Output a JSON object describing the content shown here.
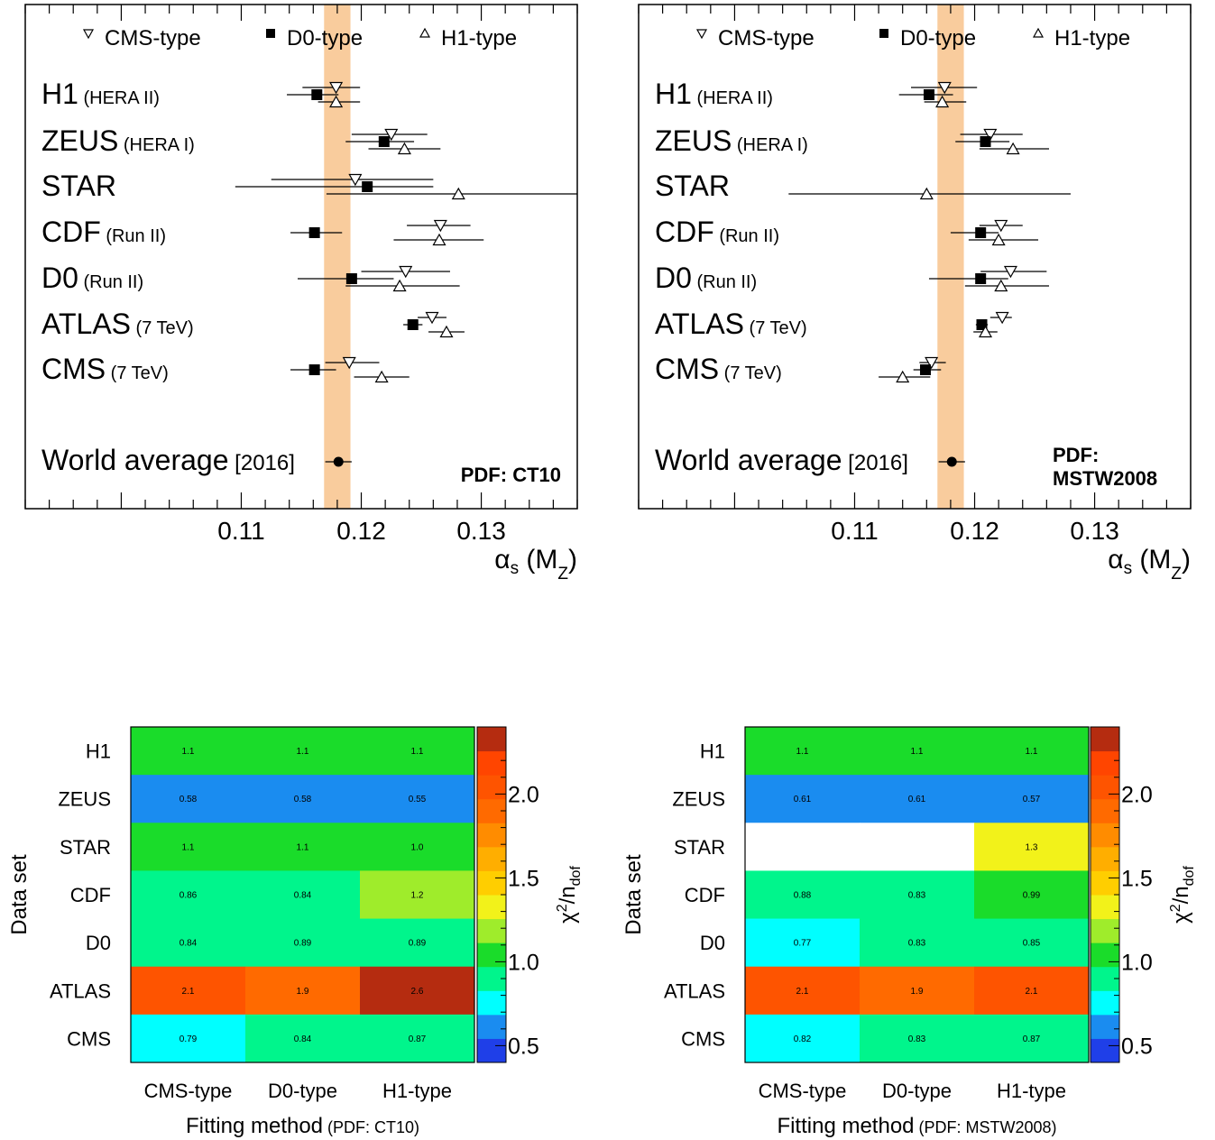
{
  "chart_data": [
    {
      "type": "scatter",
      "title": "",
      "pdf_label": "PDF: CT10",
      "xlabel": "αs (MZ)",
      "x_range": [
        0.092,
        0.138
      ],
      "x_ticks": [
        "0.11",
        "0.12",
        "0.13"
      ],
      "legend": [
        {
          "marker": "triangle-down-open",
          "label": "CMS-type"
        },
        {
          "marker": "square-filled",
          "label": "D0-type"
        },
        {
          "marker": "triangle-up-open",
          "label": "H1-type"
        }
      ],
      "band": {
        "low": 0.1169,
        "high": 0.1191,
        "color": "#f9cc9d"
      },
      "datasets": [
        {
          "name": "H1",
          "sub": "(HERA II)",
          "points": [
            {
              "method": "CMS-type",
              "value": 0.1179,
              "err_low": 0.0028,
              "err_high": 0.002
            },
            {
              "method": "D0-type",
              "value": 0.1163,
              "err_low": 0.0025,
              "err_high": 0.0018
            },
            {
              "method": "H1-type",
              "value": 0.1179,
              "err_low": 0.0015,
              "err_high": 0.002
            }
          ]
        },
        {
          "name": "ZEUS",
          "sub": "(HERA I)",
          "points": [
            {
              "method": "CMS-type",
              "value": 0.1225,
              "err_low": 0.0033,
              "err_high": 0.003
            },
            {
              "method": "D0-type",
              "value": 0.1219,
              "err_low": 0.0032,
              "err_high": 0.0025
            },
            {
              "method": "H1-type",
              "value": 0.1236,
              "err_low": 0.003,
              "err_high": 0.003
            }
          ]
        },
        {
          "name": "STAR",
          "sub": "",
          "points": [
            {
              "method": "CMS-type",
              "value": 0.1195,
              "err_low": 0.007,
              "err_high": 0.0065
            },
            {
              "method": "D0-type",
              "value": 0.1205,
              "err_low": 0.011,
              "err_high": 0.0055
            },
            {
              "method": "H1-type",
              "value": 0.1281,
              "err_low": 0.011,
              "err_high": 0.01
            }
          ]
        },
        {
          "name": "CDF",
          "sub": "(Run II)",
          "points": [
            {
              "method": "CMS-type",
              "value": 0.1266,
              "err_low": 0.0028,
              "err_high": 0.0025
            },
            {
              "method": "D0-type",
              "value": 0.1161,
              "err_low": 0.002,
              "err_high": 0.0023
            },
            {
              "method": "H1-type",
              "value": 0.1265,
              "err_low": 0.0038,
              "err_high": 0.0037
            }
          ]
        },
        {
          "name": "D0",
          "sub": "(Run II)",
          "points": [
            {
              "method": "CMS-type",
              "value": 0.1237,
              "err_low": 0.0037,
              "err_high": 0.0037
            },
            {
              "method": "D0-type",
              "value": 0.1192,
              "err_low": 0.0045,
              "err_high": 0.0035
            },
            {
              "method": "H1-type",
              "value": 0.1232,
              "err_low": 0.0045,
              "err_high": 0.005
            }
          ]
        },
        {
          "name": "ATLAS",
          "sub": "(7 TeV)",
          "points": [
            {
              "method": "CMS-type",
              "value": 0.1259,
              "err_low": 0.0012,
              "err_high": 0.0012
            },
            {
              "method": "D0-type",
              "value": 0.1243,
              "err_low": 0.0008,
              "err_high": 0.0008
            },
            {
              "method": "H1-type",
              "value": 0.1271,
              "err_low": 0.0015,
              "err_high": 0.0015
            }
          ]
        },
        {
          "name": "CMS",
          "sub": "(7 TeV)",
          "points": [
            {
              "method": "CMS-type",
              "value": 0.119,
              "err_low": 0.002,
              "err_high": 0.0025
            },
            {
              "method": "D0-type",
              "value": 0.1161,
              "err_low": 0.002,
              "err_high": 0.0018
            },
            {
              "method": "H1-type",
              "value": 0.1217,
              "err_low": 0.0023,
              "err_high": 0.0023
            }
          ]
        }
      ],
      "world_average": {
        "name": "World average",
        "sub": "[2016]",
        "value": 0.1181,
        "err": 0.0011
      }
    },
    {
      "type": "scatter",
      "title": "",
      "pdf_label": "PDF: MSTW2008",
      "xlabel": "αs (MZ)",
      "x_range": [
        0.092,
        0.138
      ],
      "x_ticks": [
        "0.11",
        "0.12",
        "0.13"
      ],
      "legend": [
        {
          "marker": "triangle-down-open",
          "label": "CMS-type"
        },
        {
          "marker": "square-filled",
          "label": "D0-type"
        },
        {
          "marker": "triangle-up-open",
          "label": "H1-type"
        }
      ],
      "band": {
        "low": 0.1169,
        "high": 0.1191,
        "color": "#f9cc9d"
      },
      "datasets": [
        {
          "name": "H1",
          "sub": "(HERA II)",
          "points": [
            {
              "method": "CMS-type",
              "value": 0.1175,
              "err_low": 0.0028,
              "err_high": 0.0027
            },
            {
              "method": "D0-type",
              "value": 0.1162,
              "err_low": 0.0025,
              "err_high": 0.002
            },
            {
              "method": "H1-type",
              "value": 0.1173,
              "err_low": 0.0015,
              "err_high": 0.002
            }
          ]
        },
        {
          "name": "ZEUS",
          "sub": "(HERA I)",
          "points": [
            {
              "method": "CMS-type",
              "value": 0.1213,
              "err_low": 0.0025,
              "err_high": 0.0027
            },
            {
              "method": "D0-type",
              "value": 0.1209,
              "err_low": 0.0025,
              "err_high": 0.002
            },
            {
              "method": "H1-type",
              "value": 0.1232,
              "err_low": 0.0028,
              "err_high": 0.003
            }
          ]
        },
        {
          "name": "STAR",
          "sub": "",
          "points": [
            {
              "method": "H1-type",
              "value": 0.116,
              "err_low": 0.0115,
              "err_high": 0.012
            }
          ]
        },
        {
          "name": "CDF",
          "sub": "(Run II)",
          "points": [
            {
              "method": "CMS-type",
              "value": 0.1222,
              "err_low": 0.0018,
              "err_high": 0.0018
            },
            {
              "method": "D0-type",
              "value": 0.1205,
              "err_low": 0.0025,
              "err_high": 0.0015
            },
            {
              "method": "H1-type",
              "value": 0.122,
              "err_low": 0.0025,
              "err_high": 0.0033
            }
          ]
        },
        {
          "name": "D0",
          "sub": "(Run II)",
          "points": [
            {
              "method": "CMS-type",
              "value": 0.123,
              "err_low": 0.0025,
              "err_high": 0.003
            },
            {
              "method": "D0-type",
              "value": 0.1205,
              "err_low": 0.0043,
              "err_high": 0.0023
            },
            {
              "method": "H1-type",
              "value": 0.1222,
              "err_low": 0.003,
              "err_high": 0.004
            }
          ]
        },
        {
          "name": "ATLAS",
          "sub": "(7 TeV)",
          "points": [
            {
              "method": "CMS-type",
              "value": 0.1223,
              "err_low": 0.001,
              "err_high": 0.0008
            },
            {
              "method": "D0-type",
              "value": 0.1206,
              "err_low": 0.0005,
              "err_high": 0.0005
            },
            {
              "method": "H1-type",
              "value": 0.1209,
              "err_low": 0.001,
              "err_high": 0.001
            }
          ]
        },
        {
          "name": "CMS",
          "sub": "(7 TeV)",
          "points": [
            {
              "method": "CMS-type",
              "value": 0.1164,
              "err_low": 0.001,
              "err_high": 0.0012
            },
            {
              "method": "D0-type",
              "value": 0.1159,
              "err_low": 0.001,
              "err_high": 0.0013
            },
            {
              "method": "H1-type",
              "value": 0.114,
              "err_low": 0.002,
              "err_high": 0.0023
            }
          ]
        }
      ],
      "world_average": {
        "name": "World average",
        "sub": "[2016]",
        "value": 0.1181,
        "err": 0.0011
      }
    },
    {
      "type": "heatmap",
      "title": "",
      "xlabel": "Fitting method",
      "xlabel_sub": "(PDF: CT10)",
      "ylabel": "Data set",
      "zlabel": "χ2/ndof",
      "x_categories": [
        "CMS-type",
        "D0-type",
        "H1-type"
      ],
      "y_categories": [
        "H1",
        "ZEUS",
        "STAR",
        "CDF",
        "D0",
        "ATLAS",
        "CMS"
      ],
      "values": [
        [
          1.1,
          1.1,
          1.1
        ],
        [
          0.58,
          0.58,
          0.55
        ],
        [
          1.1,
          1.1,
          1.0
        ],
        [
          0.86,
          0.84,
          1.2
        ],
        [
          0.84,
          0.89,
          0.89
        ],
        [
          2.1,
          1.9,
          2.6
        ],
        [
          0.79,
          0.84,
          0.87
        ]
      ],
      "labels": [
        [
          "1.1",
          "1.1",
          "1.1"
        ],
        [
          "0.58",
          "0.58",
          "0.55"
        ],
        [
          "1.1",
          "1.1",
          "1.0"
        ],
        [
          "0.86",
          "0.84",
          "1.2"
        ],
        [
          "0.84",
          "0.89",
          "0.89"
        ],
        [
          "2.1",
          "1.9",
          "2.6"
        ],
        [
          "0.79",
          "0.84",
          "0.87"
        ]
      ],
      "z_range": [
        0.4,
        2.4
      ],
      "z_ticks": [
        "0.5",
        "1.0",
        "1.5",
        "2.0"
      ]
    },
    {
      "type": "heatmap",
      "title": "",
      "xlabel": "Fitting method",
      "xlabel_sub": "(PDF: MSTW2008)",
      "ylabel": "Data set",
      "zlabel": "χ2/ndof",
      "x_categories": [
        "CMS-type",
        "D0-type",
        "H1-type"
      ],
      "y_categories": [
        "H1",
        "ZEUS",
        "STAR",
        "CDF",
        "D0",
        "ATLAS",
        "CMS"
      ],
      "values": [
        [
          1.1,
          1.1,
          1.1
        ],
        [
          0.61,
          0.61,
          0.57
        ],
        [
          null,
          null,
          1.3
        ],
        [
          0.88,
          0.83,
          0.99
        ],
        [
          0.77,
          0.83,
          0.85
        ],
        [
          2.1,
          1.9,
          2.1
        ],
        [
          0.82,
          0.83,
          0.87
        ]
      ],
      "labels": [
        [
          "1.1",
          "1.1",
          "1.1"
        ],
        [
          "0.61",
          "0.61",
          "0.57"
        ],
        [
          "",
          "",
          "1.3"
        ],
        [
          "0.88",
          "0.83",
          "0.99"
        ],
        [
          "0.77",
          "0.83",
          "0.85"
        ],
        [
          "2.1",
          "1.9",
          "2.1"
        ],
        [
          "0.82",
          "0.83",
          "0.87"
        ]
      ],
      "z_range": [
        0.4,
        2.4
      ],
      "z_ticks": [
        "0.5",
        "1.0",
        "1.5",
        "2.0"
      ]
    }
  ],
  "palette": [
    "#1f3fe8",
    "#1a8cf0",
    "#00ffff",
    "#00f58c",
    "#1adc2a",
    "#9fec2b",
    "#f2f21a",
    "#ffce00",
    "#ffae00",
    "#ff8c00",
    "#ff6a00",
    "#fe5400",
    "#ff4500",
    "#b52c10"
  ]
}
